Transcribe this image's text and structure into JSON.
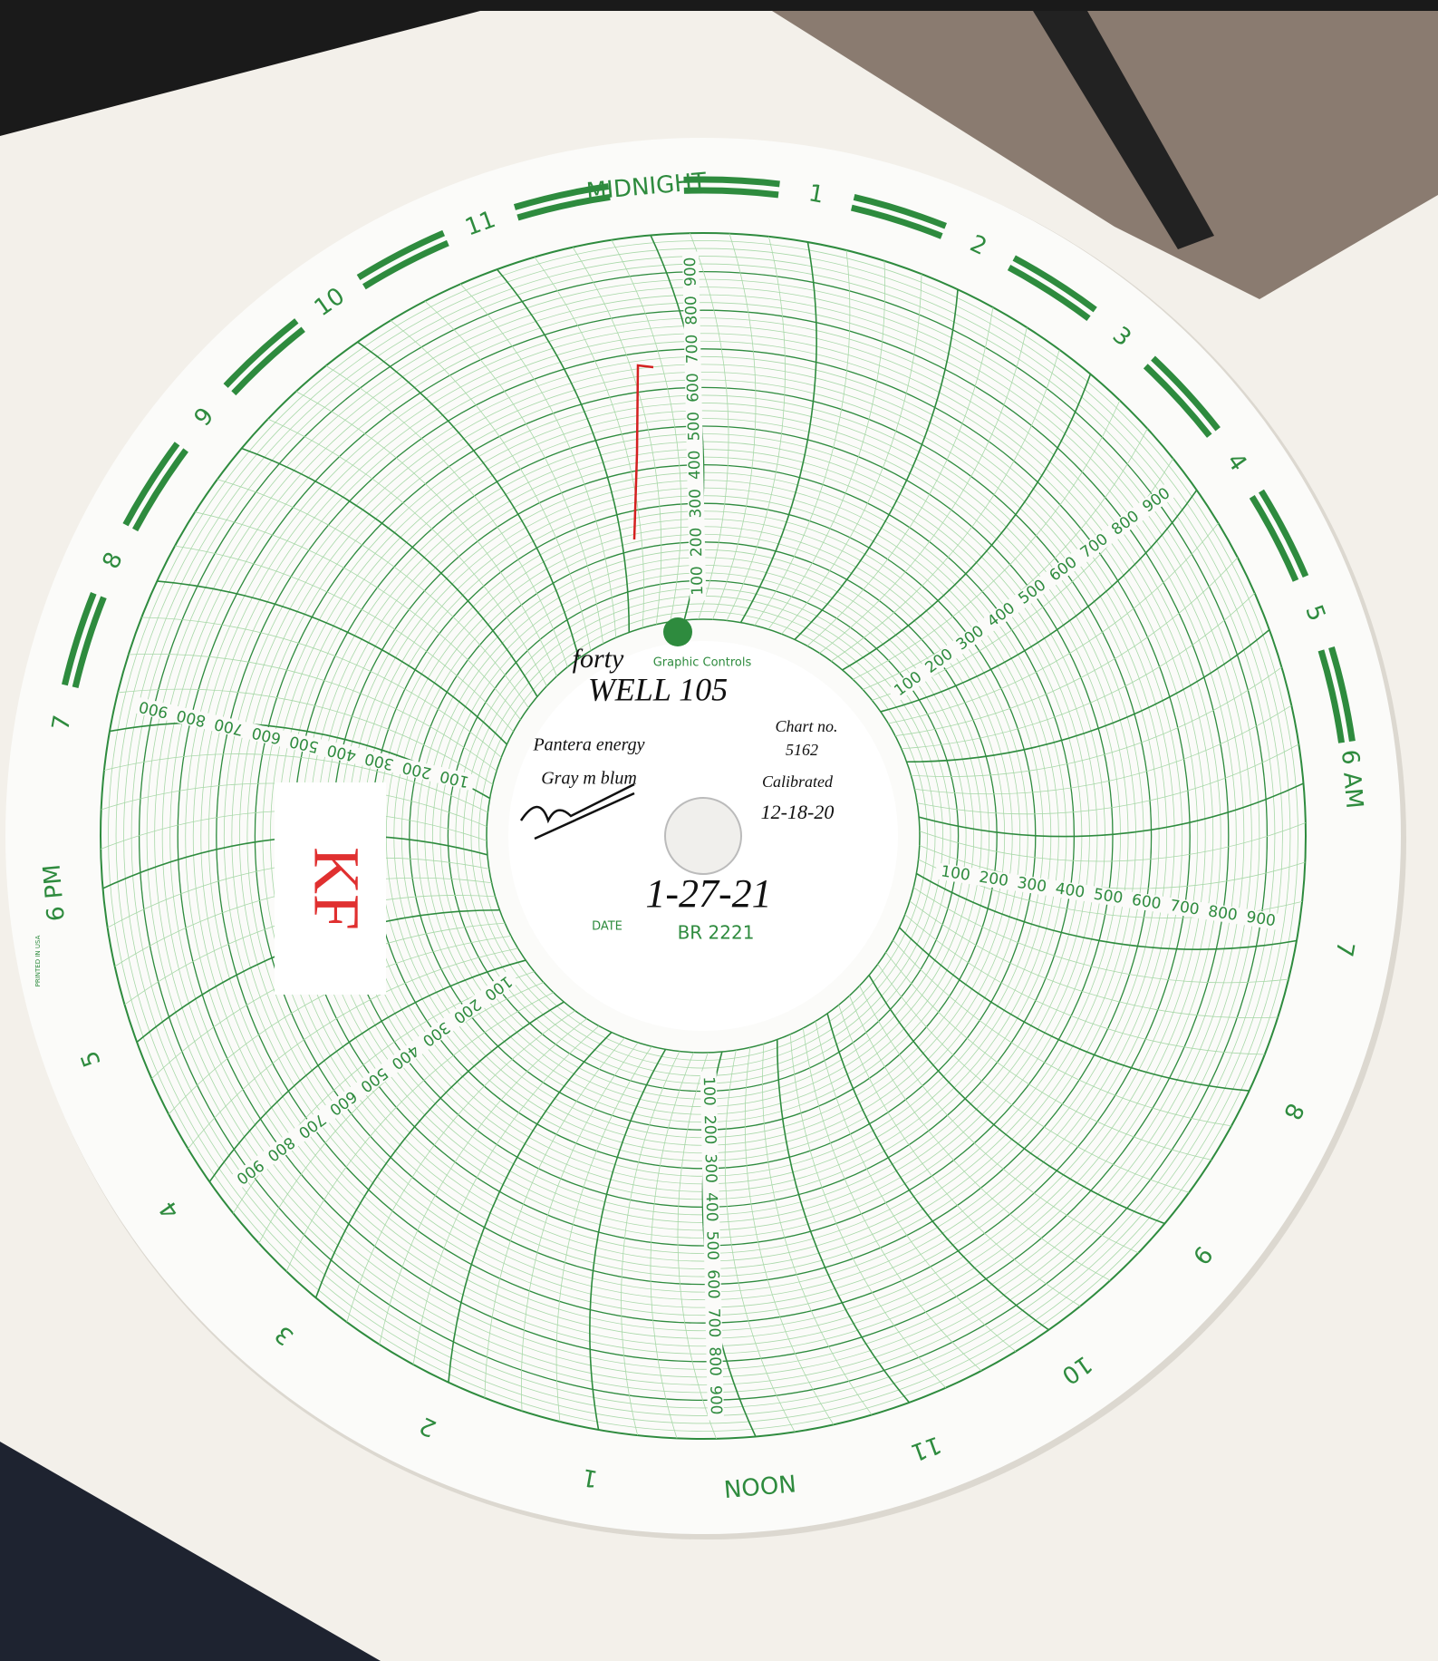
{
  "hour_labels": [
    "MIDNIGHT",
    "1",
    "2",
    "3",
    "4",
    "5",
    "6 AM",
    "7",
    "8",
    "9",
    "10",
    "11",
    "NOON",
    "1",
    "2",
    "3",
    "4",
    "5",
    "6 PM",
    "7",
    "8",
    "9",
    "10",
    "11"
  ],
  "scale_labels": [
    100,
    200,
    300,
    400,
    500,
    600,
    700,
    800,
    900
  ],
  "chart_info": {
    "brand": "forty",
    "maker": "Graphic Controls",
    "well": "WELL 105",
    "company": "Pantera energy",
    "operator": "Gray m blum",
    "chart_no_label": "Chart no.",
    "chart_no": "5162",
    "calibrated_label": "Calibrated",
    "calibrated": "12-18-20",
    "date_label": "DATE",
    "date": "1-27-21",
    "chart_code": "BR 2221"
  },
  "sticker": "KF",
  "print_note": "PRINTED IN USA"
}
